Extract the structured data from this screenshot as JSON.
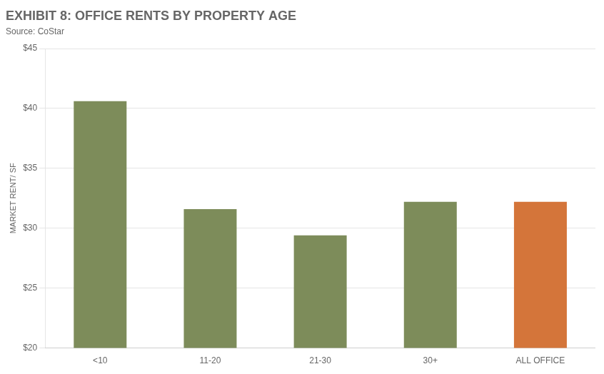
{
  "chart_data": {
    "type": "bar",
    "title": "EXHIBIT 8: OFFICE RENTS BY PROPERTY AGE",
    "subtitle": "Source: CoStar",
    "categories": [
      "<10",
      "11-20",
      "21-30",
      "30+",
      "ALL OFFICE"
    ],
    "values": [
      40.6,
      31.6,
      29.4,
      32.2,
      32.2
    ],
    "colors": [
      "#7d8c5a",
      "#7d8c5a",
      "#7d8c5a",
      "#7d8c5a",
      "#d4753a"
    ],
    "ylabel": "MARKET RENT/ SF",
    "ylim": [
      20,
      45
    ],
    "yticks": [
      {
        "value": 20,
        "label": "$20"
      },
      {
        "value": 25,
        "label": "$25"
      },
      {
        "value": 30,
        "label": "$30"
      },
      {
        "value": 35,
        "label": "$35"
      },
      {
        "value": 40,
        "label": "$40"
      },
      {
        "value": 45,
        "label": "$45"
      }
    ],
    "grid": true
  }
}
